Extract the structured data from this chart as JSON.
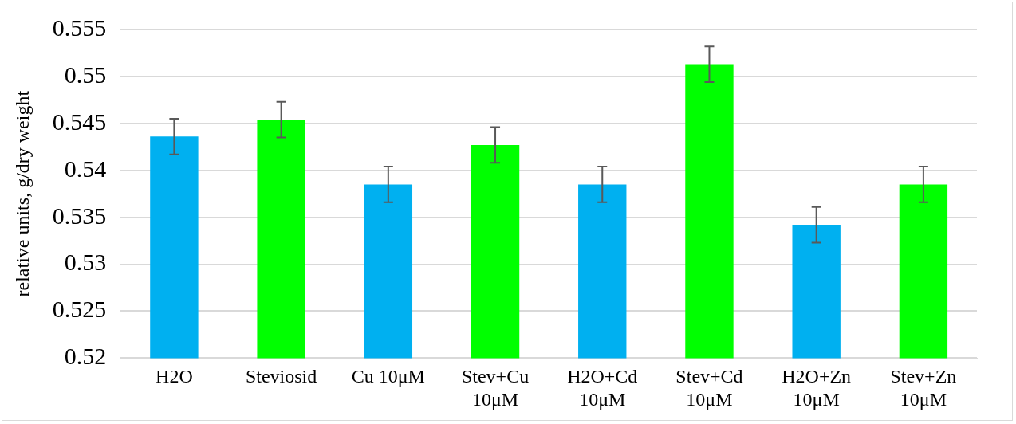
{
  "chart_data": {
    "type": "bar",
    "ylabel": "relative units, g/dry weight",
    "categories": [
      "H2O",
      "Steviosid",
      "Cu 10μM",
      "Stev+Cu 10μM",
      "H2O+Cd 10μM",
      "Stev+Cd 10μM",
      "H2O+Zn 10μM",
      "Stev+Zn 10μM"
    ],
    "values": [
      0.5436,
      0.5454,
      0.5385,
      0.5427,
      0.5385,
      0.5513,
      0.5342,
      0.5385
    ],
    "errors": [
      0.0019,
      0.0019,
      0.0019,
      0.0019,
      0.0019,
      0.0019,
      0.0019,
      0.0019
    ],
    "colors": [
      "#00b0f0",
      "#00ff00",
      "#00b0f0",
      "#00ff00",
      "#00b0f0",
      "#00ff00",
      "#00b0f0",
      "#00ff00"
    ],
    "ylim": [
      0.52,
      0.555
    ],
    "yticks": [
      0.52,
      0.525,
      0.53,
      0.535,
      0.54,
      0.545,
      0.55,
      0.555
    ],
    "grid": "y",
    "legend": false
  }
}
